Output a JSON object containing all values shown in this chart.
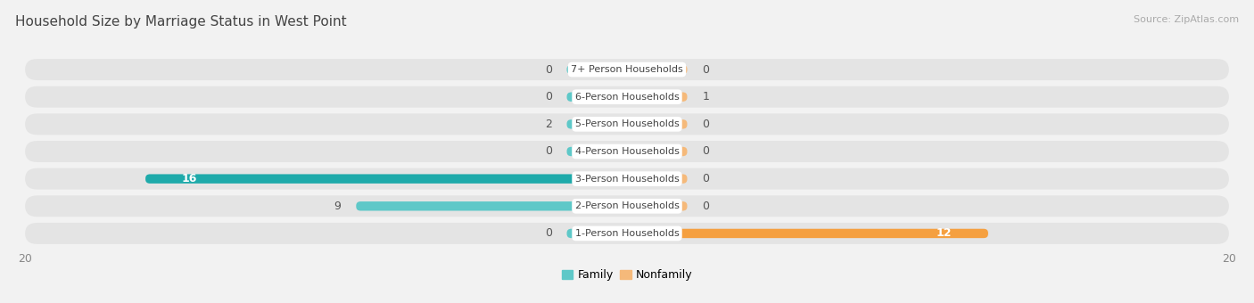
{
  "title": "Household Size by Marriage Status in West Point",
  "source": "Source: ZipAtlas.com",
  "categories": [
    "7+ Person Households",
    "6-Person Households",
    "5-Person Households",
    "4-Person Households",
    "3-Person Households",
    "2-Person Households",
    "1-Person Households"
  ],
  "family_values": [
    0,
    0,
    2,
    0,
    16,
    9,
    0
  ],
  "nonfamily_values": [
    0,
    1,
    0,
    0,
    0,
    0,
    12
  ],
  "family_color_small": "#5ec8c8",
  "family_color_large": "#1eaaaa",
  "nonfamily_color": "#f5b97a",
  "nonfamily_color_large": "#f5a040",
  "stub_size": 2,
  "xlim_left": -20,
  "xlim_right": 20,
  "background_color": "#f2f2f2",
  "row_bg_color": "#e4e4e4",
  "row_bg_light": "#f8f8f8",
  "label_bg_color": "#ffffff",
  "title_fontsize": 11,
  "source_fontsize": 8,
  "tick_fontsize": 9,
  "bar_label_fontsize": 9,
  "category_fontsize": 8
}
